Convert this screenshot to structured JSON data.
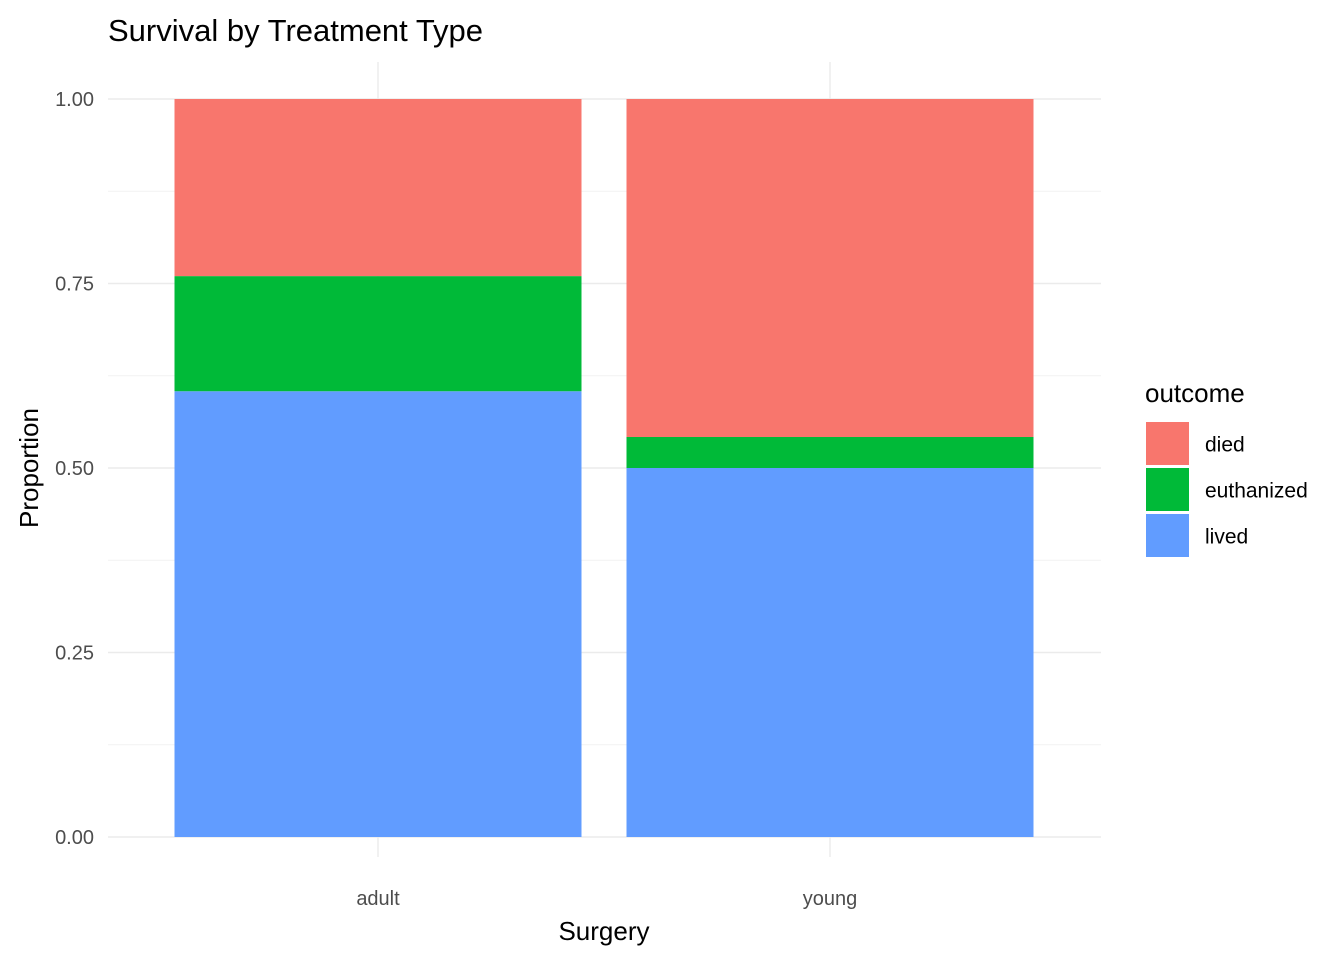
{
  "chart_data": {
    "type": "bar",
    "stacked": true,
    "title": "Survival by Treatment Type",
    "xlabel": "Surgery",
    "ylabel": "Proportion",
    "categories": [
      "adult",
      "young"
    ],
    "ylim": [
      0,
      1
    ],
    "yticks": [
      0.0,
      0.25,
      0.5,
      0.75,
      1.0
    ],
    "ytick_labels": [
      "0.00",
      "0.25",
      "0.50",
      "0.75",
      "1.00"
    ],
    "grid": true,
    "legend": {
      "title": "outcome",
      "position": "right"
    },
    "series": [
      {
        "name": "died",
        "color": "#F8766D",
        "values": [
          0.24,
          0.458
        ]
      },
      {
        "name": "euthanized",
        "color": "#00BA38",
        "values": [
          0.156,
          0.042
        ]
      },
      {
        "name": "lived",
        "color": "#619CFF",
        "values": [
          0.604,
          0.5
        ]
      }
    ]
  }
}
